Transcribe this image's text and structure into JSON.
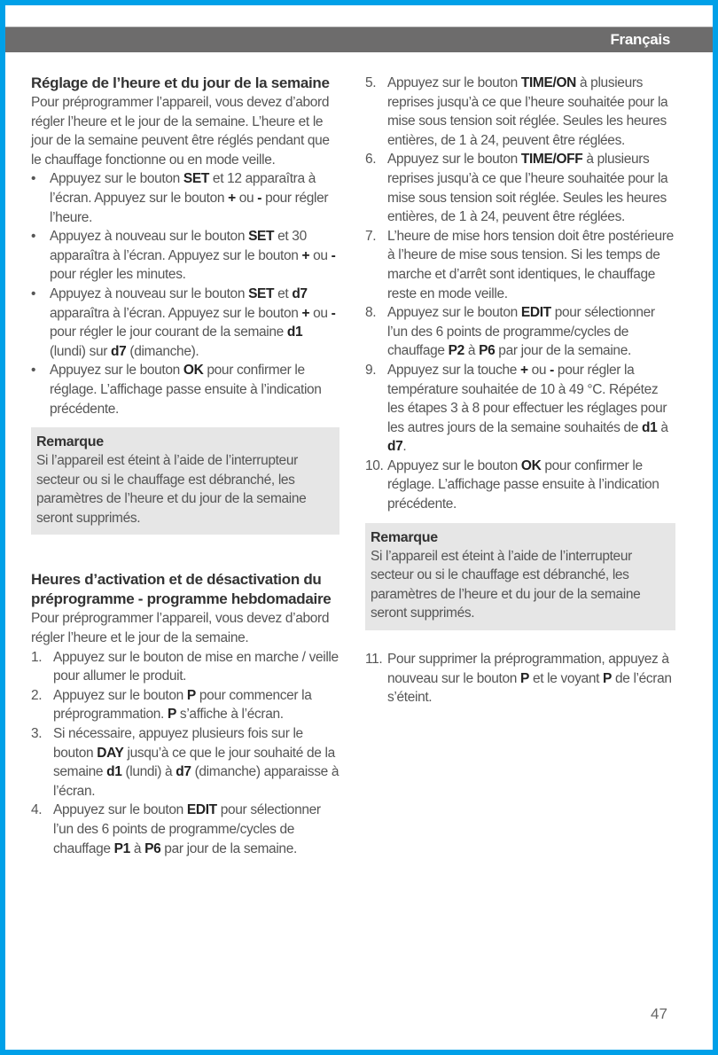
{
  "header": {
    "language": "Français"
  },
  "left": {
    "section1": {
      "title": "Réglage de l’heure et du jour de la semaine",
      "intro": "Pour préprogrammer l’appareil, vous devez d’abord régler l’heure et le jour de la semaine. L’heure et le jour de la semaine peuvent être réglés pendant que le chauffage fonctionne ou en mode veille.",
      "bullets": [
        [
          {
            "t": "Appuyez sur le bouton "
          },
          {
            "t": "SET",
            "b": true
          },
          {
            "t": " et 12 apparaîtra à l’écran. Appuyez sur le bouton "
          },
          {
            "t": "+",
            "b": true
          },
          {
            "t": " ou "
          },
          {
            "t": "-",
            "b": true
          },
          {
            "t": " pour régler l’heure."
          }
        ],
        [
          {
            "t": "Appuyez à nouveau sur le bouton "
          },
          {
            "t": "SET",
            "b": true
          },
          {
            "t": " et 30 apparaîtra à l’écran. Appuyez sur le bouton "
          },
          {
            "t": "+",
            "b": true
          },
          {
            "t": " ou "
          },
          {
            "t": "-",
            "b": true
          },
          {
            "t": " pour régler les minutes."
          }
        ],
        [
          {
            "t": "Appuyez à nouveau sur le bouton "
          },
          {
            "t": "SET",
            "b": true
          },
          {
            "t": " et "
          },
          {
            "t": "d7",
            "b": true
          },
          {
            "t": " apparaîtra à l’écran. Appuyez sur le bouton "
          },
          {
            "t": "+",
            "b": true
          },
          {
            "t": " ou "
          },
          {
            "t": "-",
            "b": true
          },
          {
            "t": " pour régler le jour courant de la semaine "
          },
          {
            "t": "d1",
            "b": true
          },
          {
            "t": " (lundi) sur "
          },
          {
            "t": "d7",
            "b": true
          },
          {
            "t": " (dimanche)."
          }
        ],
        [
          {
            "t": "Appuyez sur le bouton "
          },
          {
            "t": "OK",
            "b": true
          },
          {
            "t": " pour confirmer le réglage. L’affichage passe ensuite à l’indication précédente."
          }
        ]
      ],
      "note": {
        "title": "Remarque",
        "text": "Si l’appareil est éteint à l’aide de l’interrupteur secteur ou si le chauffage est débranché, les paramètres de l’heure et du jour de la semaine seront supprimés."
      }
    },
    "section2": {
      "title": "Heures d’activation et de désactivation du préprogramme - programme hebdomadaire",
      "intro": "Pour préprogrammer l’appareil, vous devez d’abord régler l’heure et le jour de la semaine.",
      "steps": [
        {
          "n": "1.",
          "s": [
            {
              "t": "Appuyez sur le bouton de mise en marche / veille pour allumer le produit."
            }
          ]
        },
        {
          "n": "2.",
          "s": [
            {
              "t": "Appuyez sur le bouton "
            },
            {
              "t": "P",
              "b": true
            },
            {
              "t": " pour commencer la préprogrammation. "
            },
            {
              "t": "P",
              "b": true
            },
            {
              "t": " s’affiche à l’écran."
            }
          ]
        },
        {
          "n": "3.",
          "s": [
            {
              "t": "Si nécessaire, appuyez plusieurs fois sur le bouton "
            },
            {
              "t": "DAY",
              "b": true
            },
            {
              "t": " jusqu’à ce que le jour souhaité de la semaine "
            },
            {
              "t": "d1",
              "b": true
            },
            {
              "t": " (lundi) à "
            },
            {
              "t": "d7",
              "b": true
            },
            {
              "t": " (dimanche) apparaisse à l’écran."
            }
          ]
        },
        {
          "n": "4.",
          "s": [
            {
              "t": "Appuyez sur le bouton "
            },
            {
              "t": "EDIT",
              "b": true
            },
            {
              "t": " pour sélectionner l’un des 6 points de programme/cycles de chauffage "
            },
            {
              "t": "P1",
              "b": true
            },
            {
              "t": " à "
            },
            {
              "t": "P6",
              "b": true
            },
            {
              "t": " par jour de la semaine."
            }
          ]
        }
      ]
    }
  },
  "right": {
    "steps": [
      {
        "n": "5.",
        "s": [
          {
            "t": "Appuyez sur le bouton "
          },
          {
            "t": "TIME/ON",
            "b": true
          },
          {
            "t": " à plusieurs reprises jusqu’à ce que l’heure souhaitée pour la mise sous tension soit réglée. Seules les heures entières, de 1 à 24, peuvent être réglées."
          }
        ]
      },
      {
        "n": "6.",
        "s": [
          {
            "t": "Appuyez sur le bouton "
          },
          {
            "t": "TIME/OFF",
            "b": true
          },
          {
            "t": " à plusieurs reprises jusqu’à ce que l’heure souhaitée pour la mise sous tension soit réglée. Seules les heures entières, de 1 à 24, peuvent être réglées."
          }
        ]
      },
      {
        "n": "7.",
        "s": [
          {
            "t": "L’heure de mise hors tension doit être postérieure à l’heure de mise sous tension. Si les temps de marche et d’arrêt sont identiques, le chauffage reste en mode veille."
          }
        ]
      },
      {
        "n": "8.",
        "s": [
          {
            "t": "Appuyez sur le bouton "
          },
          {
            "t": "EDIT",
            "b": true
          },
          {
            "t": " pour sélectionner l’un des 6 points de programme/cycles de chauffage "
          },
          {
            "t": "P2",
            "b": true
          },
          {
            "t": " à "
          },
          {
            "t": "P6",
            "b": true
          },
          {
            "t": " par jour de la semaine."
          }
        ]
      },
      {
        "n": "9.",
        "s": [
          {
            "t": "Appuyez sur la touche "
          },
          {
            "t": "+",
            "b": true
          },
          {
            "t": " ou "
          },
          {
            "t": "-",
            "b": true
          },
          {
            "t": " pour régler la température souhaitée de 10 à 49 °C. Répétez les étapes 3 à 8 pour effectuer les réglages pour les autres jours de la semaine souhaités de "
          },
          {
            "t": "d1",
            "b": true
          },
          {
            "t": " à "
          },
          {
            "t": "d7",
            "b": true
          },
          {
            "t": "."
          }
        ]
      },
      {
        "n": "10.",
        "s": [
          {
            "t": "Appuyez sur le bouton "
          },
          {
            "t": "OK",
            "b": true
          },
          {
            "t": " pour confirmer le réglage. L’affichage passe ensuite à l’indication précédente."
          }
        ]
      }
    ],
    "note": {
      "title": "Remarque",
      "text": "Si l’appareil est éteint à l’aide de l’interrupteur secteur ou si le chauffage est débranché, les paramètres de l’heure et du jour de la semaine seront supprimés."
    },
    "steps2": [
      {
        "n": "11.",
        "s": [
          {
            "t": "Pour supprimer la préprogrammation, appuyez à nouveau sur le bouton "
          },
          {
            "t": "P",
            "b": true
          },
          {
            "t": " et le voyant "
          },
          {
            "t": "P",
            "b": true
          },
          {
            "t": " de l’écran s’éteint."
          }
        ]
      }
    ]
  },
  "footer": {
    "page_number": "47"
  }
}
